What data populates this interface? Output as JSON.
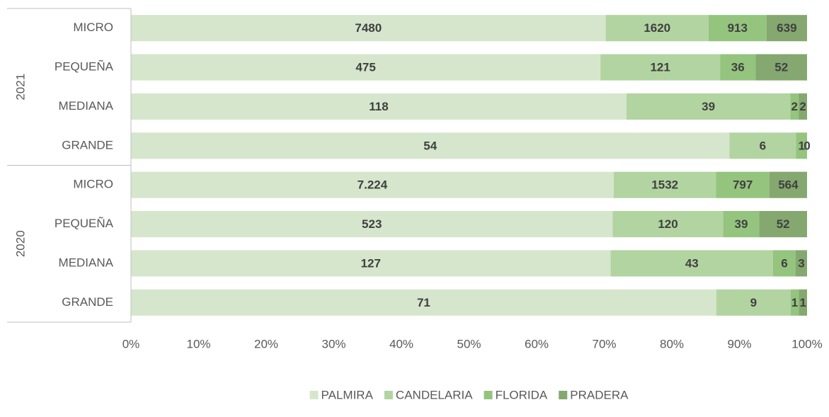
{
  "chart_data": {
    "type": "stacked_bar_100",
    "orientation": "horizontal",
    "group_labels": [
      "2021",
      "2020"
    ],
    "categories": [
      "MICRO",
      "PEQUEÑA",
      "MEDIANA",
      "GRANDE",
      "MICRO",
      "PEQUEÑA",
      "MEDIANA",
      "GRANDE"
    ],
    "series": [
      {
        "name": "PALMIRA",
        "color": "#d5e6cc",
        "values": [
          7480,
          475,
          118,
          54,
          7224,
          523,
          127,
          71
        ],
        "value_labels": [
          "7480",
          "475",
          "118",
          "54",
          "7.224",
          "523",
          "127",
          "71"
        ]
      },
      {
        "name": "CANDELARIA",
        "color": "#b2d4a1",
        "values": [
          1620,
          121,
          39,
          6,
          1532,
          120,
          43,
          9
        ]
      },
      {
        "name": "FLORIDA",
        "color": "#94c47e",
        "values": [
          913,
          36,
          2,
          1,
          797,
          39,
          6,
          1
        ]
      },
      {
        "name": "PRADERA",
        "color": "#84a86f",
        "values": [
          639,
          52,
          2,
          0,
          564,
          52,
          3,
          1
        ]
      }
    ],
    "xlim": [
      0,
      100
    ],
    "xticks": [
      {
        "value": 0,
        "label": "0%"
      },
      {
        "value": 10,
        "label": "10%"
      },
      {
        "value": 20,
        "label": "20%"
      },
      {
        "value": 30,
        "label": "30%"
      },
      {
        "value": 40,
        "label": "40%"
      },
      {
        "value": 50,
        "label": "50%"
      },
      {
        "value": 60,
        "label": "60%"
      },
      {
        "value": 70,
        "label": "70%"
      },
      {
        "value": 80,
        "label": "80%"
      },
      {
        "value": 90,
        "label": "90%"
      },
      {
        "value": 100,
        "label": "100%"
      }
    ],
    "legend": "bottom"
  }
}
